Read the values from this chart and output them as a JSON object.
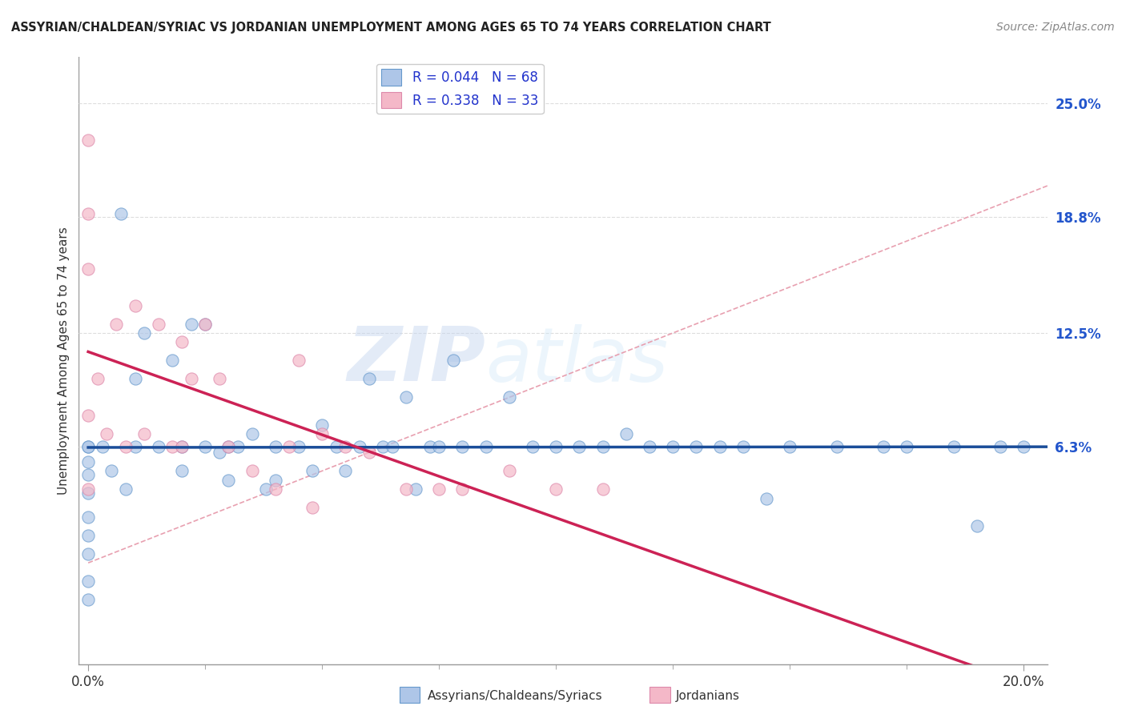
{
  "title": "ASSYRIAN/CHALDEAN/SYRIAC VS JORDANIAN UNEMPLOYMENT AMONG AGES 65 TO 74 YEARS CORRELATION CHART",
  "source": "Source: ZipAtlas.com",
  "ylabel": "Unemployment Among Ages 65 to 74 years",
  "y_ticks": [
    0.063,
    0.125,
    0.188,
    0.25
  ],
  "y_tick_labels": [
    "6.3%",
    "12.5%",
    "18.8%",
    "25.0%"
  ],
  "x_lim": [
    -0.002,
    0.205
  ],
  "y_lim": [
    -0.055,
    0.275
  ],
  "legend_r1": "R = 0.044",
  "legend_n1": "N = 68",
  "legend_r2": "R = 0.338",
  "legend_n2": "N = 33",
  "color_blue": "#aec6e8",
  "color_blue_edge": "#6699cc",
  "color_blue_line": "#1a4d99",
  "color_pink": "#f4b8c8",
  "color_pink_edge": "#dd88aa",
  "color_pink_line": "#cc2255",
  "color_diag": "#e8a0b0",
  "background_color": "#ffffff",
  "watermark_zip": "ZIP",
  "watermark_atlas": "atlas",
  "grid_color": "#dddddd",
  "assyrians_x": [
    0.0,
    0.0,
    0.0,
    0.0,
    0.0,
    0.0,
    0.0,
    0.0,
    0.0,
    0.0,
    0.003,
    0.005,
    0.007,
    0.008,
    0.01,
    0.01,
    0.012,
    0.015,
    0.018,
    0.02,
    0.02,
    0.022,
    0.025,
    0.025,
    0.028,
    0.03,
    0.03,
    0.032,
    0.035,
    0.038,
    0.04,
    0.04,
    0.045,
    0.048,
    0.05,
    0.053,
    0.055,
    0.058,
    0.06,
    0.063,
    0.065,
    0.068,
    0.07,
    0.073,
    0.075,
    0.078,
    0.08,
    0.085,
    0.09,
    0.095,
    0.1,
    0.105,
    0.11,
    0.115,
    0.12,
    0.125,
    0.13,
    0.135,
    0.14,
    0.145,
    0.15,
    0.16,
    0.17,
    0.175,
    0.185,
    0.19,
    0.195,
    0.2
  ],
  "assyrians_y": [
    0.063,
    0.063,
    0.055,
    0.048,
    0.038,
    0.025,
    0.015,
    0.005,
    -0.01,
    -0.02,
    0.063,
    0.05,
    0.19,
    0.04,
    0.1,
    0.063,
    0.125,
    0.063,
    0.11,
    0.063,
    0.05,
    0.13,
    0.13,
    0.063,
    0.06,
    0.063,
    0.045,
    0.063,
    0.07,
    0.04,
    0.063,
    0.045,
    0.063,
    0.05,
    0.075,
    0.063,
    0.05,
    0.063,
    0.1,
    0.063,
    0.063,
    0.09,
    0.04,
    0.063,
    0.063,
    0.11,
    0.063,
    0.063,
    0.09,
    0.063,
    0.063,
    0.063,
    0.063,
    0.07,
    0.063,
    0.063,
    0.063,
    0.063,
    0.063,
    0.035,
    0.063,
    0.063,
    0.063,
    0.063,
    0.063,
    0.02,
    0.063,
    0.063
  ],
  "jordanians_x": [
    0.0,
    0.0,
    0.0,
    0.0,
    0.0,
    0.002,
    0.004,
    0.006,
    0.008,
    0.01,
    0.012,
    0.015,
    0.018,
    0.02,
    0.022,
    0.025,
    0.028,
    0.03,
    0.035,
    0.04,
    0.043,
    0.048,
    0.05,
    0.055,
    0.06,
    0.068,
    0.075,
    0.08,
    0.09,
    0.1,
    0.11,
    0.02,
    0.045
  ],
  "jordanians_y": [
    0.23,
    0.19,
    0.16,
    0.08,
    0.04,
    0.1,
    0.07,
    0.13,
    0.063,
    0.14,
    0.07,
    0.13,
    0.063,
    0.12,
    0.1,
    0.13,
    0.1,
    0.063,
    0.05,
    0.04,
    0.063,
    0.03,
    0.07,
    0.063,
    0.06,
    0.04,
    0.04,
    0.04,
    0.05,
    0.04,
    0.04,
    0.063,
    0.11
  ]
}
